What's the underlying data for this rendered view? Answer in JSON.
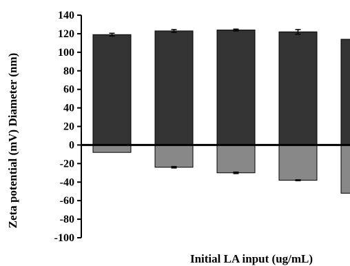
{
  "chart_data": {
    "type": "bar",
    "xlabel": "Initial LA input (ug/mL)",
    "ylabel": "Zeta potential (mV)   Diameter (nm)",
    "ylim": [
      -100,
      140
    ],
    "yticks": [
      "140",
      "120",
      "100",
      "80",
      "60",
      "40",
      "20",
      "0",
      "-20",
      "-40",
      "-60",
      "-80",
      "-100"
    ],
    "ytick_values": [
      140,
      120,
      100,
      80,
      60,
      40,
      20,
      0,
      -20,
      -40,
      -60,
      -80,
      -100
    ],
    "series": [
      {
        "name": "",
        "color": "#333333",
        "values": [
          119,
          123,
          124,
          122,
          114
        ],
        "errors": [
          1.5,
          1.5,
          1,
          2.5,
          0
        ]
      },
      {
        "name": "",
        "color": "#888888",
        "values": [
          -8,
          -24,
          -30,
          -38,
          -52
        ],
        "errors": [
          0,
          0.8,
          0.8,
          0.5,
          0
        ]
      }
    ],
    "grid": false,
    "legend": "none"
  }
}
